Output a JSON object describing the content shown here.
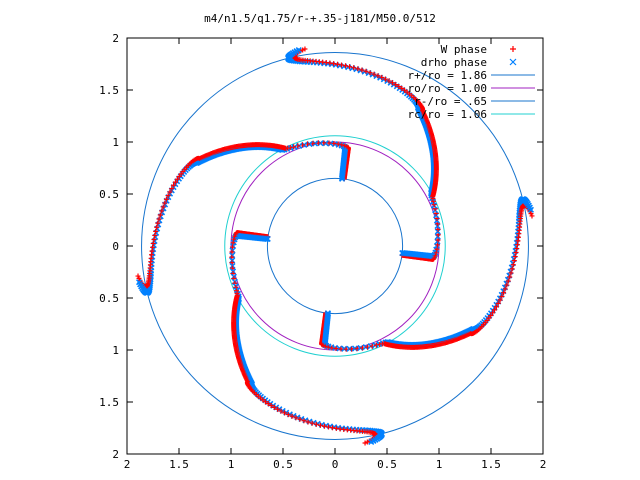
{
  "chart_data": {
    "type": "scatter",
    "title": "m4/n1.5/q1.75/r-+.35-j181/M50.0/512",
    "xlabel": "",
    "ylabel": "",
    "xlim": [
      -2,
      2
    ],
    "ylim": [
      -2,
      2
    ],
    "x_ticks": [
      -2,
      -1.5,
      -1,
      -0.5,
      0,
      0.5,
      1,
      1.5,
      2
    ],
    "y_ticks": [
      -2,
      -1.5,
      -1,
      -0.5,
      0,
      0.5,
      1,
      1.5,
      2
    ],
    "x_tick_labels": [
      "2",
      "1.5",
      "1",
      "0.5",
      "0",
      "0.5",
      "1",
      "1.5",
      "2"
    ],
    "y_tick_labels": [
      "2",
      "1.5",
      "1",
      "0.5",
      "0",
      "0.5",
      "1",
      "1.5",
      "2"
    ],
    "grid": false,
    "legend_position": "top-right",
    "legend": [
      {
        "label": "W phase",
        "marker": "plus",
        "color": "#ff0000"
      },
      {
        "label": "drho phase",
        "marker": "cross",
        "color": "#0080ff"
      },
      {
        "label": "r+/ro = 1.86",
        "line": true,
        "color": "#1874cd"
      },
      {
        "label": "ro/ro = 1.00",
        "line": true,
        "color": "#a020c0"
      },
      {
        "label": "r-/ro = .65",
        "line": true,
        "color": "#1874cd"
      },
      {
        "label": "rc/ro = 1.06",
        "line": true,
        "color": "#20d0d0"
      }
    ],
    "circles": [
      {
        "name": "r+/ro = 1.86",
        "r": 1.86,
        "color": "#1874cd"
      },
      {
        "name": "ro/ro = 1.00",
        "r": 1.0,
        "color": "#a020c0"
      },
      {
        "name": "r-/ro = .65",
        "r": 0.65,
        "color": "#1874cd"
      },
      {
        "name": "rc/ro = 1.06",
        "r": 1.06,
        "color": "#20d0d0"
      }
    ],
    "arm_model": {
      "arms": 4,
      "start_angles_deg": [
        84,
        174,
        264,
        354
      ],
      "r_inner": 0.65,
      "r_outer": 1.86,
      "r_corotation": 1.06,
      "angle_shift_deg": 6
    },
    "series": [
      {
        "name": "W phase",
        "marker": "plus",
        "color": "#ff0000"
      },
      {
        "name": "drho phase",
        "marker": "cross",
        "color": "#0080ff"
      }
    ]
  }
}
